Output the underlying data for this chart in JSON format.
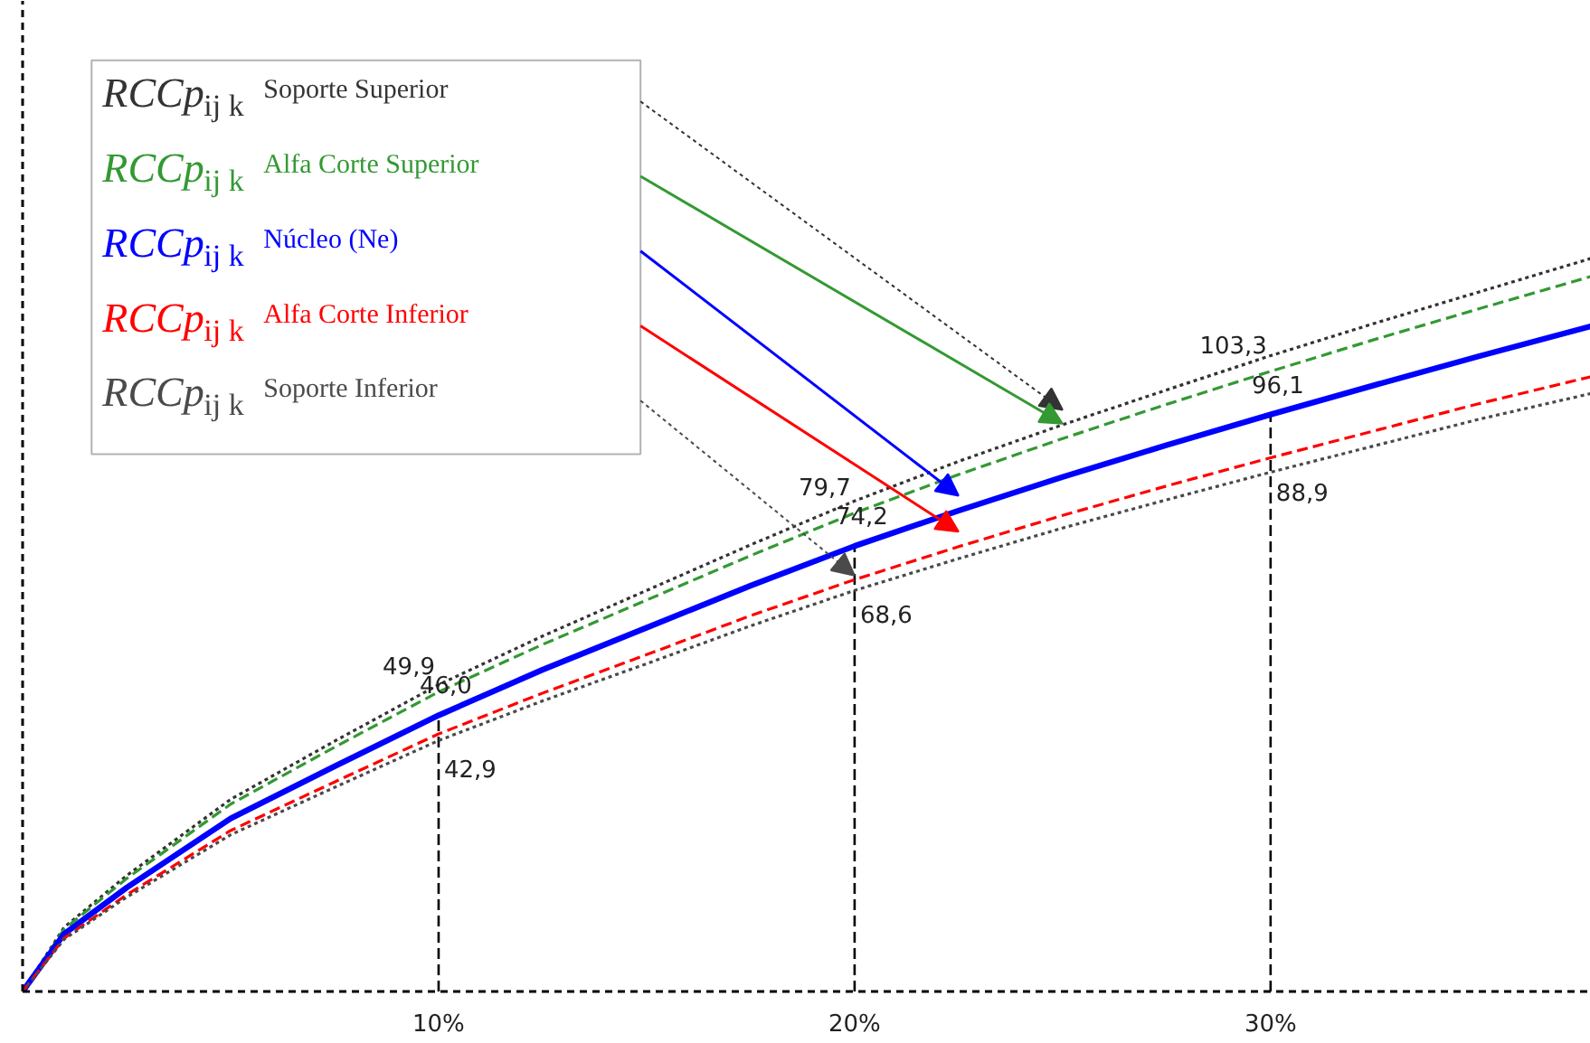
{
  "chart_data": {
    "type": "line",
    "x": [
      0,
      1,
      2.5,
      5,
      7.5,
      10,
      12.5,
      15,
      17.5,
      20,
      22.5,
      25,
      27.5,
      30,
      32.5,
      35,
      37.7
    ],
    "xlim": [
      0,
      37.7
    ],
    "ylim": [
      0,
      165
    ],
    "xticks": [
      {
        "value": 10,
        "label": "10%"
      },
      {
        "value": 20,
        "label": "20%"
      },
      {
        "value": 30,
        "label": "30%"
      }
    ],
    "tick_labels": "x",
    "grid": false,
    "marker": "none",
    "series": [
      {
        "name": "RCCp$_{ij k}$ Soporte Superior",
        "color": "#333333",
        "line_style": "dotted",
        "values": [
          0,
          10.7,
          19.3,
          32.0,
          41.7,
          51.1,
          59.2,
          66.8,
          74.4,
          81.7,
          88.3,
          94.4,
          100.2,
          105.9,
          111.3,
          116.5,
          122.1
        ]
      },
      {
        "name": "RCCp$_{ij k}$ Alfa Corte Superior",
        "color": "#339933",
        "line_style": "dashed",
        "values": [
          0,
          10.4,
          18.8,
          31.2,
          40.7,
          49.9,
          57.8,
          65.2,
          72.6,
          79.7,
          86.1,
          92.1,
          97.8,
          103.3,
          108.6,
          113.7,
          119.1
        ],
        "value_labels": [
          null,
          null,
          null,
          null,
          null,
          "49,9",
          null,
          null,
          null,
          "79,7",
          null,
          null,
          null,
          "103,3",
          null,
          null,
          null
        ]
      },
      {
        "name": "RCCp$_{ij k}$ Núcleo (Ne)",
        "color": "#0000ff",
        "line_style": "solid",
        "values": [
          0,
          9.6,
          17.3,
          28.8,
          37.5,
          46.0,
          53.6,
          60.6,
          67.6,
          74.2,
          80.1,
          85.7,
          91.0,
          96.1,
          101.0,
          105.8,
          110.8
        ],
        "value_labels": [
          null,
          null,
          null,
          null,
          null,
          "46,0",
          null,
          null,
          null,
          "74,2",
          null,
          null,
          null,
          "96,1",
          null,
          null,
          null
        ]
      },
      {
        "name": "RCCp$_{ij k}$ Alfa Corte Inferior",
        "color": "#ff0000",
        "line_style": "dashed",
        "values": [
          0,
          8.9,
          16.1,
          26.8,
          34.9,
          42.9,
          49.7,
          56.1,
          62.6,
          68.6,
          74.1,
          79.3,
          84.2,
          88.9,
          93.4,
          97.9,
          102.4
        ],
        "value_labels": [
          null,
          null,
          null,
          null,
          null,
          "42,9",
          null,
          null,
          null,
          "68,6",
          null,
          null,
          null,
          "88,9",
          null,
          null,
          null
        ]
      },
      {
        "name": "RCCp$_{ij k}$ Soporte Inferior",
        "color": "#4a4a4a",
        "line_style": "dotted",
        "values": [
          0,
          8.7,
          15.7,
          26.1,
          34.0,
          41.8,
          48.4,
          54.6,
          60.9,
          66.8,
          72.1,
          77.2,
          81.9,
          86.5,
          90.9,
          95.3,
          99.6
        ]
      }
    ],
    "ref_lines": [
      {
        "axis": "x",
        "value": 10,
        "color": "#000000",
        "line_style": "dashed"
      },
      {
        "axis": "x",
        "value": 20,
        "color": "#000000",
        "line_style": "dashed"
      },
      {
        "axis": "x",
        "value": 30,
        "color": "#000000",
        "line_style": "dashed"
      }
    ]
  }
}
